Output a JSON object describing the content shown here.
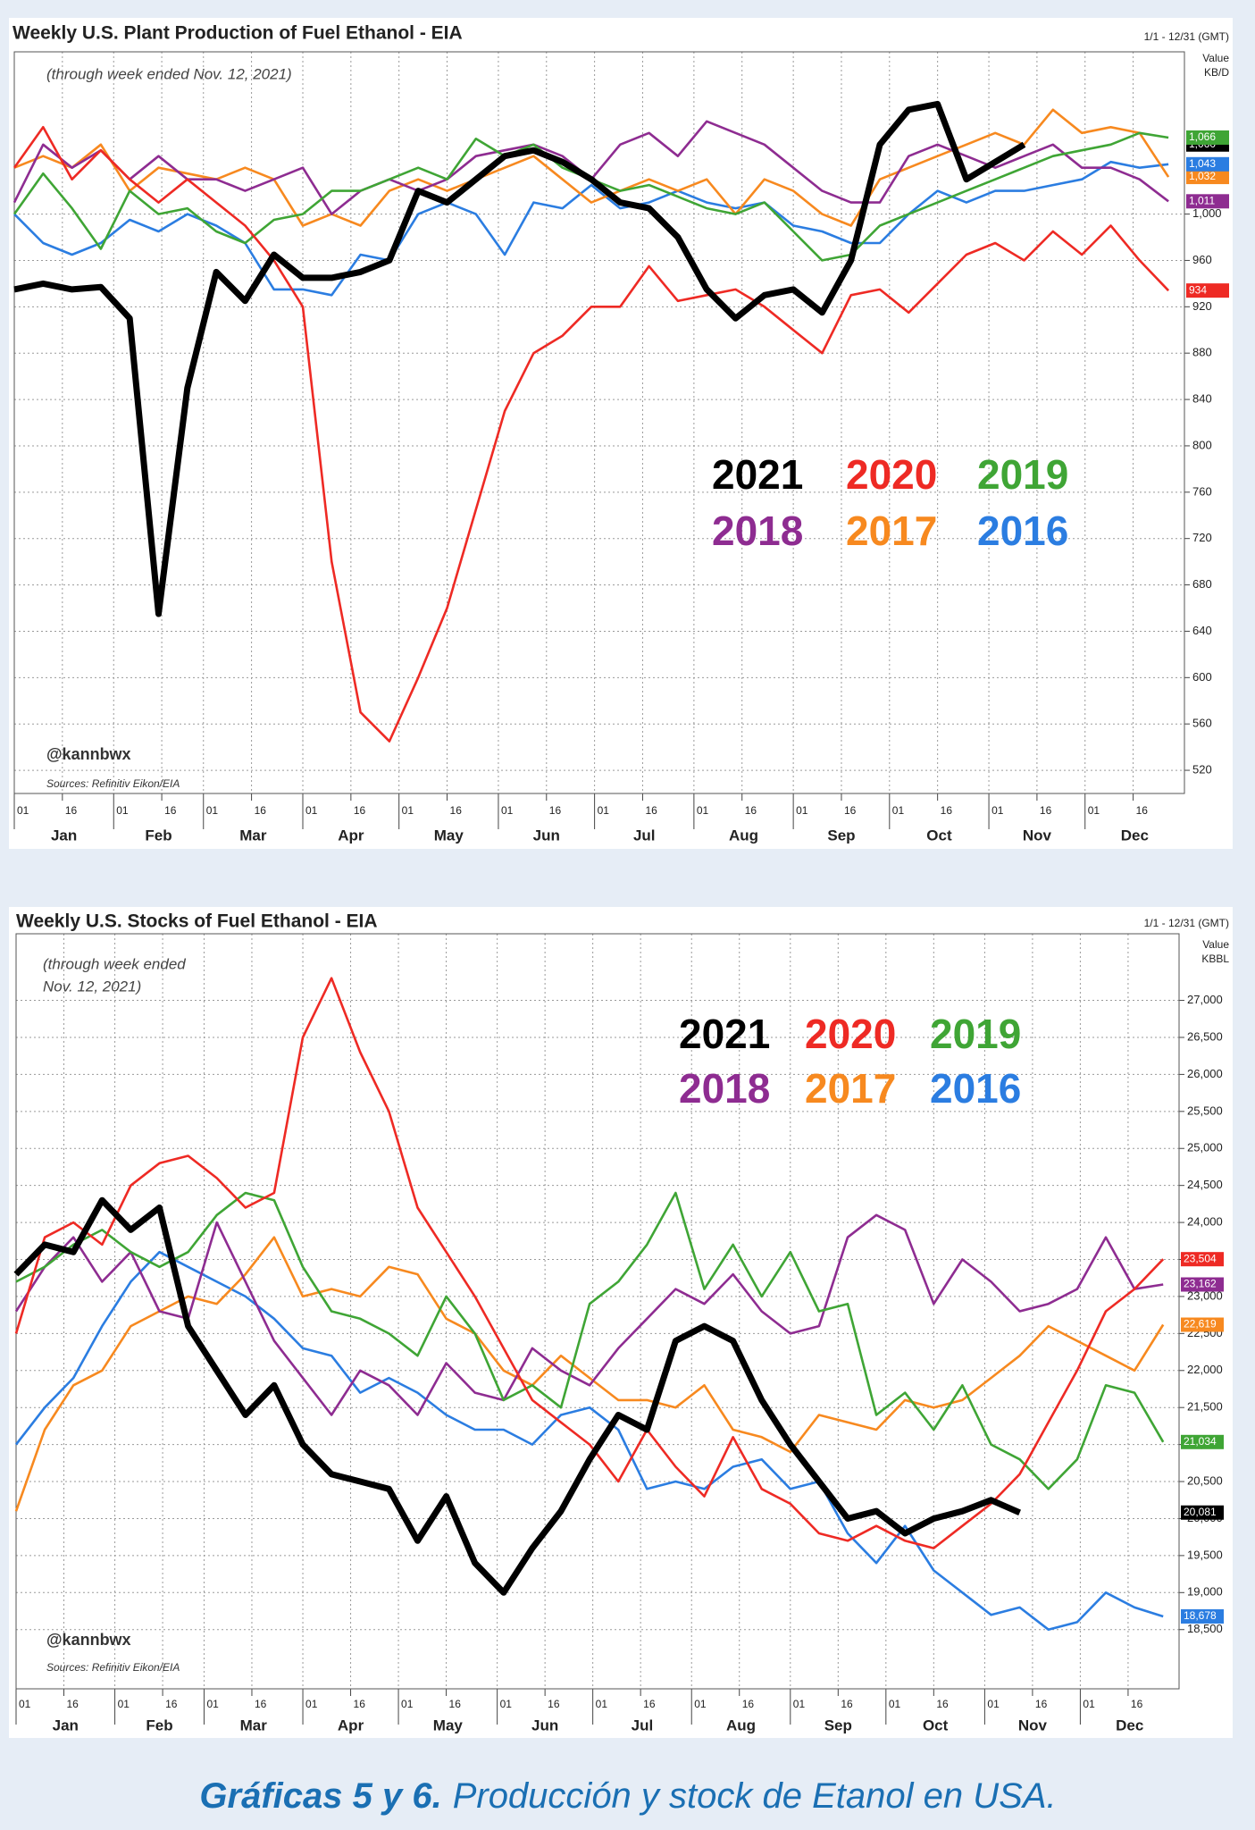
{
  "chart_data": [
    {
      "type": "line",
      "title": "Weekly U.S. Plant Production of Fuel Ethanol - EIA",
      "subtitle": [
        "(through week ended Nov. 12, 2021)"
      ],
      "date_range": "1/1 - 12/31 (GMT)",
      "value_label": "Value",
      "unit": "KB/D",
      "handle": "@kannbwx",
      "source": "Sources: Refinitiv Eikon/EIA",
      "x": [
        1,
        10,
        19,
        28,
        37,
        46,
        55,
        64,
        73,
        82,
        91,
        100,
        109,
        118,
        127,
        136,
        145,
        154,
        163,
        172,
        181,
        190,
        199,
        208,
        217,
        226,
        235,
        244,
        253,
        262,
        271,
        280,
        289,
        298,
        307,
        316,
        325,
        334,
        343,
        352,
        361
      ],
      "xlim": [
        1,
        366
      ],
      "xticks": [
        {
          "value": 1,
          "label": "01"
        },
        {
          "value": 16,
          "label": "16"
        },
        {
          "value": 32,
          "label": "01"
        },
        {
          "value": 47,
          "label": "16"
        },
        {
          "value": 60,
          "label": "01"
        },
        {
          "value": 75,
          "label": "16"
        },
        {
          "value": 91,
          "label": "01"
        },
        {
          "value": 106,
          "label": "16"
        },
        {
          "value": 121,
          "label": "01"
        },
        {
          "value": 136,
          "label": "16"
        },
        {
          "value": 152,
          "label": "01"
        },
        {
          "value": 167,
          "label": "16"
        },
        {
          "value": 182,
          "label": "01"
        },
        {
          "value": 197,
          "label": "16"
        },
        {
          "value": 213,
          "label": "01"
        },
        {
          "value": 228,
          "label": "16"
        },
        {
          "value": 244,
          "label": "01"
        },
        {
          "value": 259,
          "label": "16"
        },
        {
          "value": 274,
          "label": "01"
        },
        {
          "value": 289,
          "label": "16"
        },
        {
          "value": 305,
          "label": "01"
        },
        {
          "value": 320,
          "label": "16"
        },
        {
          "value": 335,
          "label": "01"
        },
        {
          "value": 350,
          "label": "16"
        }
      ],
      "months": [
        "Jan",
        "Feb",
        "Mar",
        "Apr",
        "May",
        "Jun",
        "Jul",
        "Aug",
        "Sep",
        "Oct",
        "Nov",
        "Dec"
      ],
      "ylim": [
        500,
        1140
      ],
      "yticks": [
        520,
        560,
        600,
        640,
        680,
        720,
        760,
        800,
        840,
        880,
        920,
        960,
        {
          "value": 1000,
          "label": "1,000"
        }
      ],
      "grid": true,
      "series": [
        {
          "name": "2021",
          "color": "#000000",
          "end_label": "1,060",
          "values": [
            935,
            940,
            935,
            937,
            910,
            655,
            850,
            950,
            925,
            965,
            945,
            945,
            950,
            960,
            1020,
            1010,
            1030,
            1050,
            1055,
            1045,
            1030,
            1010,
            1005,
            980,
            935,
            910,
            930,
            935,
            915,
            960,
            1060,
            1090,
            1095,
            1030,
            1045,
            1060,
            null,
            null,
            null,
            null,
            null
          ]
        },
        {
          "name": "2020",
          "color": "#ee2a24",
          "end_label": "934",
          "values": [
            1040,
            1075,
            1030,
            1055,
            1030,
            1010,
            1030,
            1010,
            990,
            960,
            920,
            700,
            570,
            545,
            600,
            660,
            745,
            830,
            880,
            895,
            920,
            920,
            955,
            925,
            930,
            935,
            920,
            900,
            880,
            930,
            935,
            915,
            940,
            965,
            975,
            960,
            985,
            965,
            990,
            960,
            934
          ]
        },
        {
          "name": "2019",
          "color": "#3fa535",
          "end_label": "1,066",
          "values": [
            1000,
            1035,
            1005,
            970,
            1020,
            1000,
            1005,
            985,
            975,
            995,
            1000,
            1020,
            1020,
            1030,
            1040,
            1030,
            1065,
            1050,
            1060,
            1040,
            1030,
            1020,
            1025,
            1015,
            1005,
            1000,
            1010,
            985,
            960,
            965,
            990,
            1000,
            1010,
            1020,
            1030,
            1040,
            1050,
            1055,
            1060,
            1070,
            1066
          ]
        },
        {
          "name": "2018",
          "color": "#8e2c91",
          "end_label": "1,011",
          "values": [
            1010,
            1060,
            1040,
            1055,
            1030,
            1050,
            1030,
            1030,
            1020,
            1030,
            1040,
            1000,
            1020,
            1030,
            1020,
            1030,
            1050,
            1055,
            1060,
            1050,
            1030,
            1060,
            1070,
            1050,
            1080,
            1070,
            1060,
            1040,
            1020,
            1010,
            1010,
            1050,
            1060,
            1050,
            1040,
            1050,
            1060,
            1040,
            1040,
            1030,
            1011
          ]
        },
        {
          "name": "2017",
          "color": "#f7891f",
          "end_label": "1,032",
          "values": [
            1040,
            1050,
            1040,
            1060,
            1020,
            1040,
            1035,
            1030,
            1040,
            1030,
            990,
            1000,
            990,
            1020,
            1030,
            1020,
            1030,
            1040,
            1050,
            1030,
            1010,
            1020,
            1030,
            1020,
            1030,
            1000,
            1030,
            1020,
            1000,
            990,
            1030,
            1040,
            1050,
            1060,
            1070,
            1060,
            1090,
            1070,
            1075,
            1070,
            1032
          ]
        },
        {
          "name": "2016",
          "color": "#2b7de1",
          "end_label": "1,043",
          "values": [
            1000,
            975,
            965,
            975,
            995,
            985,
            1000,
            990,
            975,
            935,
            935,
            930,
            965,
            960,
            1000,
            1010,
            1000,
            965,
            1010,
            1005,
            1025,
            1005,
            1010,
            1020,
            1010,
            1005,
            1010,
            990,
            985,
            975,
            975,
            1000,
            1020,
            1010,
            1020,
            1020,
            1025,
            1030,
            1045,
            1040,
            1043
          ]
        }
      ]
    },
    {
      "type": "line",
      "title": "Weekly U.S. Stocks of Fuel Ethanol - EIA",
      "subtitle": [
        "(through week ended",
        "Nov. 12, 2021)"
      ],
      "date_range": "1/1 - 12/31 (GMT)",
      "value_label": "Value",
      "unit": "KBBL",
      "handle": "@kannbwx",
      "source": "Sources: Refinitiv Eikon/EIA",
      "x": [
        1,
        10,
        19,
        28,
        37,
        46,
        55,
        64,
        73,
        82,
        91,
        100,
        109,
        118,
        127,
        136,
        145,
        154,
        163,
        172,
        181,
        190,
        199,
        208,
        217,
        226,
        235,
        244,
        253,
        262,
        271,
        280,
        289,
        298,
        307,
        316,
        325,
        334,
        343,
        352,
        361
      ],
      "xlim": [
        1,
        366
      ],
      "xticks": [
        {
          "value": 1,
          "label": "01"
        },
        {
          "value": 16,
          "label": "16"
        },
        {
          "value": 32,
          "label": "01"
        },
        {
          "value": 47,
          "label": "16"
        },
        {
          "value": 60,
          "label": "01"
        },
        {
          "value": 75,
          "label": "16"
        },
        {
          "value": 91,
          "label": "01"
        },
        {
          "value": 106,
          "label": "16"
        },
        {
          "value": 121,
          "label": "01"
        },
        {
          "value": 136,
          "label": "16"
        },
        {
          "value": 152,
          "label": "01"
        },
        {
          "value": 167,
          "label": "16"
        },
        {
          "value": 182,
          "label": "01"
        },
        {
          "value": 197,
          "label": "16"
        },
        {
          "value": 213,
          "label": "01"
        },
        {
          "value": 228,
          "label": "16"
        },
        {
          "value": 244,
          "label": "01"
        },
        {
          "value": 259,
          "label": "16"
        },
        {
          "value": 274,
          "label": "01"
        },
        {
          "value": 289,
          "label": "16"
        },
        {
          "value": 305,
          "label": "01"
        },
        {
          "value": 320,
          "label": "16"
        },
        {
          "value": 335,
          "label": "01"
        },
        {
          "value": 350,
          "label": "16"
        }
      ],
      "months": [
        "Jan",
        "Feb",
        "Mar",
        "Apr",
        "May",
        "Jun",
        "Jul",
        "Aug",
        "Sep",
        "Oct",
        "Nov",
        "Dec"
      ],
      "ylim": [
        17700,
        27900
      ],
      "yticks": [
        {
          "value": 18500,
          "label": "18,500"
        },
        {
          "value": 19000,
          "label": "19,000"
        },
        {
          "value": 19500,
          "label": "19,500"
        },
        {
          "value": 20000,
          "label": "20,000"
        },
        {
          "value": 20500,
          "label": "20,500"
        },
        {
          "value": 21000,
          "label": "21,000"
        },
        {
          "value": 21500,
          "label": "21,500"
        },
        {
          "value": 22000,
          "label": "22,000"
        },
        {
          "value": 22500,
          "label": "22,500"
        },
        {
          "value": 23000,
          "label": "23,000"
        },
        {
          "value": 23500,
          "label": "23,500"
        },
        {
          "value": 24000,
          "label": "24,000"
        },
        {
          "value": 24500,
          "label": "24,500"
        },
        {
          "value": 25000,
          "label": "25,000"
        },
        {
          "value": 25500,
          "label": "25,500"
        },
        {
          "value": 26000,
          "label": "26,000"
        },
        {
          "value": 26500,
          "label": "26,500"
        },
        {
          "value": 27000,
          "label": "27,000"
        }
      ],
      "grid": true,
      "series": [
        {
          "name": "2021",
          "color": "#000000",
          "end_label": "20,081",
          "values": [
            23300,
            23700,
            23600,
            24300,
            23900,
            24200,
            22600,
            22000,
            21400,
            21800,
            21000,
            20600,
            20500,
            20400,
            19700,
            20300,
            19400,
            19000,
            19600,
            20100,
            20800,
            21400,
            21200,
            22400,
            22600,
            22400,
            21600,
            21000,
            20500,
            20000,
            20100,
            19800,
            20000,
            20100,
            20250,
            20081,
            null,
            null,
            null,
            null,
            null
          ]
        },
        {
          "name": "2020",
          "color": "#ee2a24",
          "end_label": "23,504",
          "values": [
            22500,
            23800,
            24000,
            23700,
            24500,
            24800,
            24900,
            24600,
            24200,
            24400,
            26500,
            27300,
            26300,
            25500,
            24200,
            23600,
            23000,
            22300,
            21600,
            21300,
            21000,
            20500,
            21200,
            20700,
            20300,
            21100,
            20400,
            20200,
            19800,
            19700,
            19900,
            19700,
            19600,
            19900,
            20200,
            20600,
            21300,
            22000,
            22800,
            23100,
            23504
          ]
        },
        {
          "name": "2019",
          "color": "#3fa535",
          "end_label": "21,034",
          "values": [
            23200,
            23400,
            23700,
            23900,
            23600,
            23400,
            23600,
            24100,
            24400,
            24300,
            23400,
            22800,
            22700,
            22500,
            22200,
            23000,
            22500,
            21600,
            21800,
            21500,
            22900,
            23200,
            23700,
            24400,
            23100,
            23700,
            23000,
            23600,
            22800,
            22900,
            21400,
            21700,
            21200,
            21800,
            21000,
            20800,
            20400,
            20800,
            21800,
            21700,
            21034
          ]
        },
        {
          "name": "2018",
          "color": "#8e2c91",
          "end_label": "23,162",
          "values": [
            22800,
            23400,
            23800,
            23200,
            23600,
            22800,
            22700,
            24000,
            23200,
            22400,
            21900,
            21400,
            22000,
            21800,
            21400,
            22100,
            21700,
            21600,
            22300,
            22000,
            21800,
            22300,
            22700,
            23100,
            22900,
            23300,
            22800,
            22500,
            22600,
            23800,
            24100,
            23900,
            22900,
            23500,
            23200,
            22800,
            22900,
            23100,
            23800,
            23100,
            23162
          ]
        },
        {
          "name": "2017",
          "color": "#f7891f",
          "end_label": "22,619",
          "values": [
            20100,
            21200,
            21800,
            22000,
            22600,
            22800,
            23000,
            22900,
            23300,
            23800,
            23000,
            23100,
            23000,
            23400,
            23300,
            22700,
            22500,
            22000,
            21800,
            22200,
            21900,
            21600,
            21600,
            21500,
            21800,
            21200,
            21100,
            20900,
            21400,
            21300,
            21200,
            21600,
            21500,
            21600,
            21900,
            22200,
            22600,
            22400,
            22200,
            22000,
            22619
          ]
        },
        {
          "name": "2016",
          "color": "#2b7de1",
          "end_label": "18,678",
          "values": [
            21000,
            21500,
            21900,
            22600,
            23200,
            23600,
            23400,
            23200,
            23000,
            22700,
            22300,
            22200,
            21700,
            21900,
            21700,
            21400,
            21200,
            21200,
            21000,
            21400,
            21500,
            21200,
            20400,
            20500,
            20400,
            20700,
            20800,
            20400,
            20500,
            19800,
            19400,
            19900,
            19300,
            19000,
            18700,
            18800,
            18500,
            18600,
            19000,
            18800,
            18678
          ]
        }
      ]
    }
  ],
  "caption": {
    "bold": "Gráficas 5 y 6.",
    "text": "Producción y stock de Etanol en USA."
  }
}
